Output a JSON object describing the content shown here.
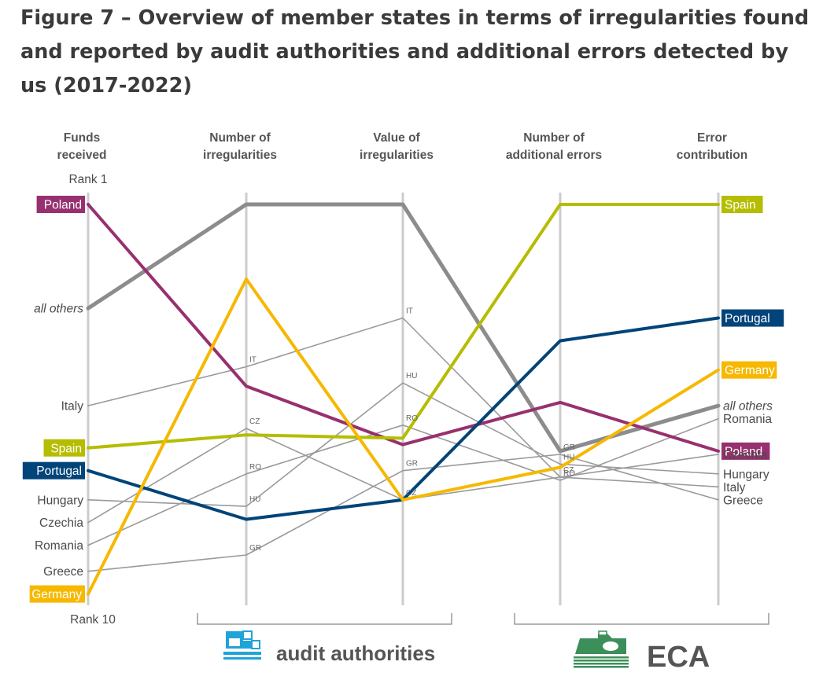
{
  "title": "Figure 7 – Overview of member states in terms of irregularities found and reported by audit authorities and additional errors detected by us (2017-2022)",
  "colors": {
    "axis": "#cccccc",
    "text": "#4a4a4a",
    "gray_line": "#8c8c8c"
  },
  "chart_data": {
    "type": "line",
    "subtype": "parallel-coordinates rank chart",
    "axes": [
      "Funds\nreceived",
      "Number of\nirregularities",
      "Value of\nirregularities",
      "Number of\nadditional errors",
      "Error\ncontribution"
    ],
    "rank_top_label": "Rank 1",
    "rank_bottom_label": "Rank 10",
    "rank_range": [
      1,
      10
    ],
    "series": [
      {
        "name": "Poland",
        "color": "#97306f",
        "style": "highlight",
        "y": [
          1.0,
          6.6,
          8.4,
          7.1,
          8.6
        ],
        "labels": [
          "Poland",
          "",
          "",
          "",
          "Poland"
        ]
      },
      {
        "name": "all others",
        "color": "#8c8c8c",
        "style": "bold-gray",
        "y": [
          4.2,
          1.0,
          1.0,
          8.6,
          7.2
        ],
        "labels": [
          "all others",
          "",
          "",
          "",
          "all others"
        ]
      },
      {
        "name": "Italy",
        "color": "#9a9a9a",
        "style": "thin",
        "y": [
          7.2,
          6.0,
          4.5,
          9.4,
          9.7
        ],
        "labels": [
          "Italy",
          "IT",
          "IT",
          "",
          "Italy"
        ]
      },
      {
        "name": "Spain",
        "color": "#b5bd00",
        "style": "highlight",
        "y": [
          8.5,
          8.1,
          8.2,
          1.0,
          1.0
        ],
        "labels": [
          "Spain",
          "",
          "",
          "",
          "Spain"
        ]
      },
      {
        "name": "Portugal",
        "color": "#004479",
        "style": "highlight",
        "y": [
          9.2,
          10.7,
          10.1,
          5.2,
          4.5
        ],
        "labels": [
          "Portugal",
          "",
          "",
          "",
          "Portugal"
        ]
      },
      {
        "name": "Hungary",
        "color": "#9a9a9a",
        "style": "thin",
        "y": [
          10.1,
          10.3,
          6.5,
          9.0,
          9.3
        ],
        "labels": [
          "Hungary",
          "HU",
          "HU",
          "HU",
          "Hungary"
        ]
      },
      {
        "name": "Czechia",
        "color": "#9a9a9a",
        "style": "thin",
        "y": [
          10.8,
          7.9,
          10.1,
          9.4,
          8.7
        ],
        "labels": [
          "Czechia",
          "CZ",
          "CZ",
          "CZ",
          "Czechia"
        ]
      },
      {
        "name": "Romania",
        "color": "#9a9a9a",
        "style": "thin",
        "y": [
          11.5,
          9.3,
          7.8,
          9.5,
          7.6
        ],
        "labels": [
          "Romania",
          "RO",
          "RO",
          "RO",
          "Romania"
        ]
      },
      {
        "name": "Greece",
        "color": "#9a9a9a",
        "style": "thin",
        "y": [
          12.3,
          11.8,
          9.2,
          8.7,
          10.1
        ],
        "labels": [
          "Greece",
          "GR",
          "GR",
          "GR",
          "Greece"
        ]
      },
      {
        "name": "Germany",
        "color": "#f6b800",
        "style": "highlight",
        "y": [
          13.0,
          3.3,
          10.1,
          9.1,
          6.1
        ],
        "labels": [
          "Germany",
          "",
          "",
          "",
          "Germany"
        ]
      }
    ],
    "groups": [
      {
        "label": "audit authorities",
        "icon": "audit-authorities-icon",
        "color": "#1fa3d8"
      },
      {
        "label": "ECA",
        "icon": "eca-icon",
        "color": "#3d8f5a"
      }
    ]
  }
}
